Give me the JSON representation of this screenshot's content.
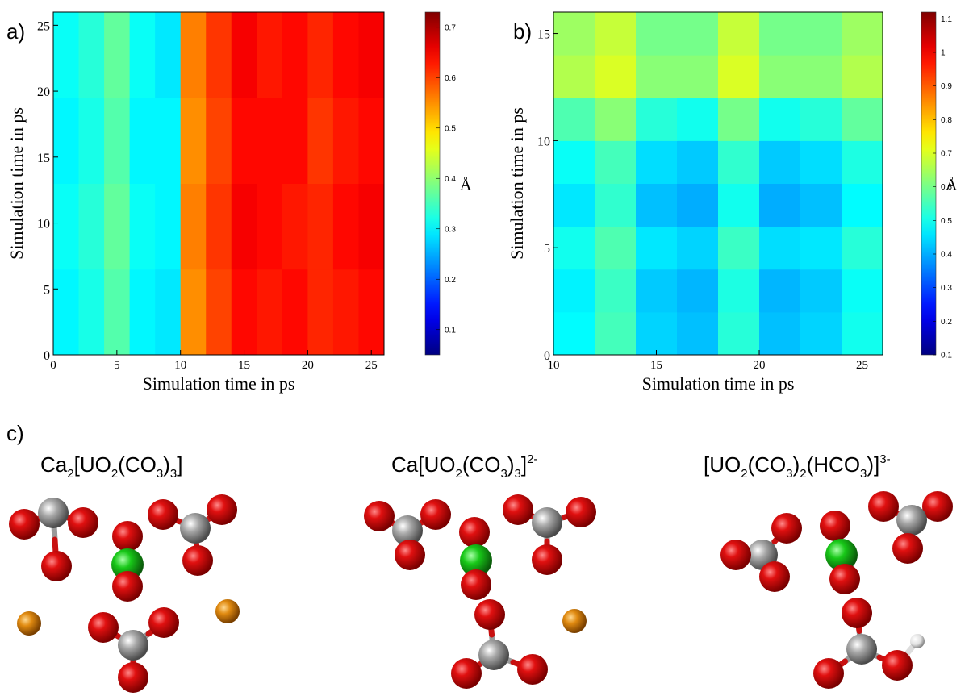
{
  "chart_data": [
    {
      "type": "heatmap",
      "panel_label": "a)",
      "xlabel": "Simulation time in ps",
      "ylabel": "Simulation time in ps",
      "xlim": [
        0,
        26
      ],
      "xticks": [
        0,
        5,
        10,
        15,
        20,
        25
      ],
      "ylim": [
        0,
        26
      ],
      "yticks": [
        0,
        5,
        10,
        15,
        20,
        25
      ],
      "xbins": [
        0,
        2,
        4,
        6,
        8,
        10,
        12,
        14,
        16,
        18,
        20,
        22,
        24,
        26
      ],
      "ybins": [
        0,
        6.5,
        13,
        19.5,
        26
      ],
      "values": [
        [
          0.3,
          0.32,
          0.36,
          0.3,
          0.29,
          0.55,
          0.6,
          0.64,
          0.63,
          0.64,
          0.62,
          0.63,
          0.64
        ],
        [
          0.31,
          0.33,
          0.37,
          0.31,
          0.3,
          0.56,
          0.61,
          0.65,
          0.64,
          0.63,
          0.62,
          0.64,
          0.65
        ],
        [
          0.3,
          0.32,
          0.36,
          0.3,
          0.3,
          0.55,
          0.6,
          0.64,
          0.64,
          0.64,
          0.61,
          0.63,
          0.64
        ],
        [
          0.31,
          0.33,
          0.37,
          0.31,
          0.29,
          0.56,
          0.61,
          0.65,
          0.63,
          0.64,
          0.62,
          0.64,
          0.65
        ]
      ],
      "colormap": "jet",
      "clim": [
        0.05,
        0.73
      ],
      "cticks": [
        0.1,
        0.2,
        0.3,
        0.4,
        0.5,
        0.6,
        0.7
      ],
      "clabel": "Å"
    },
    {
      "type": "heatmap",
      "panel_label": "b)",
      "xlabel": "Simulation time in ps",
      "ylabel": "Simulation time in ps",
      "xlim": [
        10,
        26
      ],
      "xticks": [
        10,
        15,
        20,
        25
      ],
      "ylim": [
        0,
        16
      ],
      "yticks": [
        0,
        5,
        10,
        15
      ],
      "xbins": [
        10,
        12,
        14,
        16,
        18,
        20,
        22,
        24,
        26
      ],
      "ybins": [
        0,
        2,
        4,
        6,
        8,
        10,
        12,
        14,
        16
      ],
      "values": [
        [
          0.48,
          0.55,
          0.44,
          0.42,
          0.52,
          0.42,
          0.44,
          0.5
        ],
        [
          0.47,
          0.54,
          0.43,
          0.41,
          0.51,
          0.41,
          0.43,
          0.49
        ],
        [
          0.5,
          0.56,
          0.46,
          0.44,
          0.54,
          0.45,
          0.46,
          0.52
        ],
        [
          0.46,
          0.53,
          0.42,
          0.4,
          0.5,
          0.4,
          0.42,
          0.48
        ],
        [
          0.49,
          0.55,
          0.45,
          0.43,
          0.53,
          0.43,
          0.45,
          0.51
        ],
        [
          0.56,
          0.62,
          0.52,
          0.5,
          0.6,
          0.5,
          0.52,
          0.58
        ],
        [
          0.66,
          0.7,
          0.62,
          0.62,
          0.7,
          0.62,
          0.62,
          0.66
        ],
        [
          0.64,
          0.68,
          0.6,
          0.6,
          0.68,
          0.6,
          0.6,
          0.64
        ]
      ],
      "colormap": "jet",
      "clim": [
        0.1,
        1.12
      ],
      "cticks": [
        0.1,
        0.2,
        0.3,
        0.4,
        0.5,
        0.6,
        0.7,
        0.8,
        0.9,
        1,
        1.1
      ],
      "clabel": "Å"
    }
  ],
  "structures": {
    "panel_label": "c)",
    "molecules": [
      {
        "formula": [
          {
            "text": "Ca"
          },
          {
            "sub": "2"
          },
          {
            "text": "[UO"
          },
          {
            "sub": "2"
          },
          {
            "text": "(CO"
          },
          {
            "sub": "3"
          },
          {
            "text": ")"
          },
          {
            "sub": "3"
          },
          {
            "text": "]"
          }
        ]
      },
      {
        "formula": [
          {
            "text": "Ca[UO"
          },
          {
            "sub": "2"
          },
          {
            "text": "(CO"
          },
          {
            "sub": "3"
          },
          {
            "text": ")"
          },
          {
            "sub": "3"
          },
          {
            "text": "]"
          },
          {
            "sup": "2-"
          }
        ]
      },
      {
        "formula": [
          {
            "text": "[UO"
          },
          {
            "sub": "2"
          },
          {
            "text": "(CO"
          },
          {
            "sub": "3"
          },
          {
            "text": ")"
          },
          {
            "sub": "2"
          },
          {
            "text": "(HCO"
          },
          {
            "sub": "3"
          },
          {
            "text": ")]"
          },
          {
            "sup": "3-"
          }
        ]
      }
    ]
  }
}
